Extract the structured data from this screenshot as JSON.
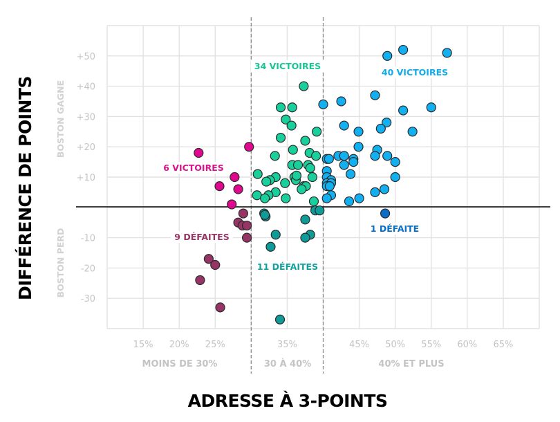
{
  "chart_data": {
    "type": "scatter",
    "xlabel": "ADRESSE À 3-POINTS",
    "ylabel": "DIFFÉRENCE DE POINTS",
    "xlim": [
      10,
      70
    ],
    "ylim": [
      -40,
      60
    ],
    "grid": true,
    "x_ticks": [
      15,
      20,
      25,
      35,
      45,
      50,
      55,
      60,
      65
    ],
    "x_tick_labels": [
      "15%",
      "20%",
      "25%",
      "35%",
      "45%",
      "50%",
      "55%",
      "60%",
      "65%"
    ],
    "y_ticks": [
      50,
      40,
      30,
      20,
      10,
      -10,
      -20,
      -30
    ],
    "y_tick_labels": [
      "+50",
      "+40",
      "+30",
      "+20",
      "+10",
      "-10",
      "-20",
      "-30"
    ],
    "y_side_labels": {
      "top": "BOSTON GAGNE",
      "bottom": "BOSTON PERD"
    },
    "zones": [
      {
        "label": "MOINS DE 30%",
        "from": 10,
        "to": 30
      },
      {
        "label": "30 À 40%",
        "from": 30,
        "to": 40
      },
      {
        "label": "40% ET PLUS",
        "from": 40,
        "to": 70
      }
    ],
    "dividers": [
      30,
      40
    ],
    "series": [
      {
        "name": "6 VICTOIRES",
        "color": "#e0088f",
        "text_color": "#d9138a",
        "points": [
          [
            22.7,
            18
          ],
          [
            29.7,
            20
          ],
          [
            27.7,
            10
          ],
          [
            25.6,
            7
          ],
          [
            28.2,
            6
          ],
          [
            27.3,
            1
          ]
        ]
      },
      {
        "name": "9 DÉFAITES",
        "color": "#963565",
        "text_color": "#963565",
        "points": [
          [
            28.9,
            -2
          ],
          [
            28.2,
            -5
          ],
          [
            28.8,
            -6
          ],
          [
            29.4,
            -6
          ],
          [
            29.4,
            -10
          ],
          [
            24.1,
            -17
          ],
          [
            25,
            -19
          ],
          [
            22.9,
            -24
          ],
          [
            25.7,
            -33
          ]
        ]
      },
      {
        "name": "34 VICTOIRES",
        "color": "#19cf9b",
        "text_color": "#19c595",
        "points": [
          [
            37.3,
            40
          ],
          [
            34.1,
            33
          ],
          [
            35.7,
            33
          ],
          [
            34.8,
            29
          ],
          [
            35.6,
            27
          ],
          [
            39.1,
            25
          ],
          [
            34.1,
            23
          ],
          [
            37.5,
            22
          ],
          [
            35.8,
            19
          ],
          [
            38.1,
            18
          ],
          [
            39,
            17
          ],
          [
            33.3,
            17
          ],
          [
            35.7,
            14
          ],
          [
            36.5,
            14
          ],
          [
            37.9,
            14
          ],
          [
            38.2,
            13
          ],
          [
            30.9,
            11
          ],
          [
            33.4,
            10
          ],
          [
            32.6,
            9
          ],
          [
            34.7,
            8
          ],
          [
            36,
            10
          ],
          [
            36.2,
            9
          ],
          [
            38.5,
            10
          ],
          [
            37.3,
            7
          ],
          [
            37.6,
            7
          ],
          [
            37,
            6
          ],
          [
            33.4,
            5
          ],
          [
            32.4,
            4
          ],
          [
            30.8,
            4
          ],
          [
            31.9,
            3
          ],
          [
            34.8,
            3
          ],
          [
            38.7,
            2
          ],
          [
            36.3,
            10.5
          ],
          [
            32.1,
            8.5
          ]
        ]
      },
      {
        "name": "11 DÉFAITES",
        "color": "#0f9b98",
        "text_color": "#12a09c",
        "points": [
          [
            31.8,
            -2
          ],
          [
            32,
            -3
          ],
          [
            31.9,
            -2.5
          ],
          [
            37.5,
            -4
          ],
          [
            38.9,
            -1
          ],
          [
            39.5,
            -1
          ],
          [
            33.4,
            -9
          ],
          [
            38.2,
            -9
          ],
          [
            37.5,
            -10
          ],
          [
            32.7,
            -13
          ],
          [
            34,
            -37
          ]
        ]
      },
      {
        "name": "40 VICTOIRES",
        "color": "#12b0f0",
        "text_color": "#12ace9",
        "points": [
          [
            51.1,
            52
          ],
          [
            48.9,
            50
          ],
          [
            57.2,
            51
          ],
          [
            47.2,
            37
          ],
          [
            42.5,
            35
          ],
          [
            40,
            34
          ],
          [
            55,
            33
          ],
          [
            51.1,
            32
          ],
          [
            42.9,
            27
          ],
          [
            48.8,
            28
          ],
          [
            48,
            26
          ],
          [
            44.9,
            25
          ],
          [
            52.4,
            25
          ],
          [
            44.9,
            20
          ],
          [
            47.5,
            19
          ],
          [
            47.2,
            17
          ],
          [
            48.9,
            17
          ],
          [
            50,
            15
          ],
          [
            42.1,
            17
          ],
          [
            42.9,
            17
          ],
          [
            44.2,
            16
          ],
          [
            44.2,
            15
          ],
          [
            42.9,
            14
          ],
          [
            40.5,
            16
          ],
          [
            40.8,
            16
          ],
          [
            40.5,
            12
          ],
          [
            43.8,
            11
          ],
          [
            50,
            10
          ],
          [
            40.5,
            10
          ],
          [
            41.1,
            9
          ],
          [
            40.5,
            8
          ],
          [
            41.1,
            8
          ],
          [
            40.5,
            7
          ],
          [
            40.9,
            7
          ],
          [
            41.1,
            4
          ],
          [
            40.5,
            3
          ],
          [
            43.6,
            2
          ],
          [
            45,
            3
          ],
          [
            47.2,
            5
          ],
          [
            48.5,
            6
          ]
        ]
      },
      {
        "name": "1 DÉFAITE",
        "color": "#0a6ec6",
        "text_color": "#0a6ec6",
        "points": [
          [
            48.6,
            -2
          ]
        ]
      }
    ]
  }
}
